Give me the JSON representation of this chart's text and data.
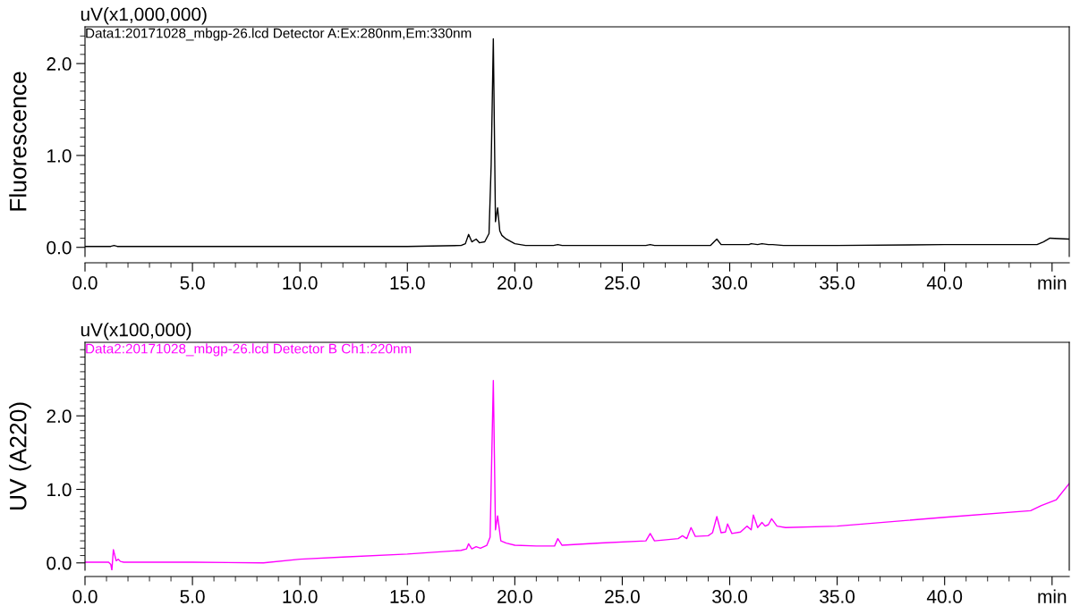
{
  "chart_data": [
    {
      "type": "line",
      "title": "Data1:20171028_mbgp-26.lcd Detector A:Ex:280nm,Em:330nm",
      "ylabel": "Fluorescence",
      "annotations": [
        "uV(x1,000,000)"
      ],
      "grid": false,
      "marker": "none",
      "line_style": "solid",
      "xlim": [
        0,
        45.8
      ],
      "ylim": [
        -0.1,
        2.4
      ],
      "xticks": [
        {
          "value": 0,
          "label": "0.0"
        },
        {
          "value": 1,
          "label": null
        },
        {
          "value": 2,
          "label": null
        },
        {
          "value": 3,
          "label": null
        },
        {
          "value": 4,
          "label": null
        },
        {
          "value": 5,
          "label": "5.0"
        },
        {
          "value": 6,
          "label": null
        },
        {
          "value": 7,
          "label": null
        },
        {
          "value": 8,
          "label": null
        },
        {
          "value": 9,
          "label": null
        },
        {
          "value": 10,
          "label": "10.0"
        },
        {
          "value": 11,
          "label": null
        },
        {
          "value": 12,
          "label": null
        },
        {
          "value": 13,
          "label": null
        },
        {
          "value": 14,
          "label": null
        },
        {
          "value": 15,
          "label": "15.0"
        },
        {
          "value": 16,
          "label": null
        },
        {
          "value": 17,
          "label": null
        },
        {
          "value": 18,
          "label": null
        },
        {
          "value": 19,
          "label": null
        },
        {
          "value": 20,
          "label": "20.0"
        },
        {
          "value": 21,
          "label": null
        },
        {
          "value": 22,
          "label": null
        },
        {
          "value": 23,
          "label": null
        },
        {
          "value": 24,
          "label": null
        },
        {
          "value": 25,
          "label": "25.0"
        },
        {
          "value": 26,
          "label": null
        },
        {
          "value": 27,
          "label": null
        },
        {
          "value": 28,
          "label": null
        },
        {
          "value": 29,
          "label": null
        },
        {
          "value": 30,
          "label": "30.0"
        },
        {
          "value": 31,
          "label": null
        },
        {
          "value": 32,
          "label": null
        },
        {
          "value": 33,
          "label": null
        },
        {
          "value": 34,
          "label": null
        },
        {
          "value": 35,
          "label": "35.0"
        },
        {
          "value": 36,
          "label": null
        },
        {
          "value": 37,
          "label": null
        },
        {
          "value": 38,
          "label": null
        },
        {
          "value": 39,
          "label": null
        },
        {
          "value": 40,
          "label": "40.0"
        },
        {
          "value": 41,
          "label": null
        },
        {
          "value": 42,
          "label": null
        },
        {
          "value": 43,
          "label": null
        },
        {
          "value": 44,
          "label": null
        },
        {
          "value": 45,
          "label": "min"
        }
      ],
      "yticks": [
        {
          "value": 0.0,
          "label": "0.0"
        },
        {
          "value": 0.1,
          "label": null
        },
        {
          "value": 0.2,
          "label": null
        },
        {
          "value": 0.3,
          "label": null
        },
        {
          "value": 0.4,
          "label": null
        },
        {
          "value": 0.5,
          "label": null
        },
        {
          "value": 0.6,
          "label": null
        },
        {
          "value": 0.7,
          "label": null
        },
        {
          "value": 0.8,
          "label": null
        },
        {
          "value": 0.9,
          "label": null
        },
        {
          "value": 1.0,
          "label": "1.0"
        },
        {
          "value": 1.1,
          "label": null
        },
        {
          "value": 1.2,
          "label": null
        },
        {
          "value": 1.3,
          "label": null
        },
        {
          "value": 1.4,
          "label": null
        },
        {
          "value": 1.5,
          "label": null
        },
        {
          "value": 1.6,
          "label": null
        },
        {
          "value": 1.7,
          "label": null
        },
        {
          "value": 1.8,
          "label": null
        },
        {
          "value": 1.9,
          "label": null
        },
        {
          "value": 2.0,
          "label": "2.0"
        },
        {
          "value": 2.1,
          "label": null
        },
        {
          "value": 2.2,
          "label": null
        },
        {
          "value": 2.3,
          "label": null
        }
      ],
      "series": [
        {
          "color": "#000000",
          "x": [
            0,
            1.2,
            1.35,
            1.5,
            5,
            10,
            15,
            17.5,
            17.7,
            17.85,
            18.0,
            18.2,
            18.35,
            18.6,
            18.8,
            18.9,
            19.0,
            19.1,
            19.2,
            19.3,
            19.4,
            19.6,
            20.0,
            20.5,
            21.8,
            22.0,
            22.2,
            26.1,
            26.3,
            26.5,
            29.1,
            29.4,
            29.6,
            30.9,
            31.0,
            31.3,
            31.5,
            31.8,
            32.0,
            32.5,
            35,
            40,
            44.3,
            44.6,
            44.9,
            45.8
          ],
          "values": [
            0.01,
            0.01,
            0.02,
            0.01,
            0.01,
            0.01,
            0.01,
            0.02,
            0.04,
            0.14,
            0.06,
            0.09,
            0.05,
            0.06,
            0.15,
            0.9,
            2.27,
            0.28,
            0.43,
            0.18,
            0.13,
            0.09,
            0.04,
            0.02,
            0.02,
            0.03,
            0.02,
            0.02,
            0.03,
            0.02,
            0.02,
            0.09,
            0.03,
            0.03,
            0.04,
            0.03,
            0.04,
            0.03,
            0.03,
            0.02,
            0.02,
            0.03,
            0.03,
            0.06,
            0.1,
            0.09
          ]
        }
      ]
    },
    {
      "type": "line",
      "title": "Data2:20171028_mbgp-26.lcd Detector B Ch1:220nm",
      "ylabel": "UV (A220)",
      "annotations": [
        "uV(x100,000)"
      ],
      "grid": false,
      "marker": "none",
      "line_style": "solid",
      "xlim": [
        0,
        45.8
      ],
      "ylim": [
        -0.1,
        3.0
      ],
      "xticks": [
        {
          "value": 0,
          "label": "0.0"
        },
        {
          "value": 1,
          "label": null
        },
        {
          "value": 2,
          "label": null
        },
        {
          "value": 3,
          "label": null
        },
        {
          "value": 4,
          "label": null
        },
        {
          "value": 5,
          "label": "5.0"
        },
        {
          "value": 6,
          "label": null
        },
        {
          "value": 7,
          "label": null
        },
        {
          "value": 8,
          "label": null
        },
        {
          "value": 9,
          "label": null
        },
        {
          "value": 10,
          "label": "10.0"
        },
        {
          "value": 11,
          "label": null
        },
        {
          "value": 12,
          "label": null
        },
        {
          "value": 13,
          "label": null
        },
        {
          "value": 14,
          "label": null
        },
        {
          "value": 15,
          "label": "15.0"
        },
        {
          "value": 16,
          "label": null
        },
        {
          "value": 17,
          "label": null
        },
        {
          "value": 18,
          "label": null
        },
        {
          "value": 19,
          "label": null
        },
        {
          "value": 20,
          "label": "20.0"
        },
        {
          "value": 21,
          "label": null
        },
        {
          "value": 22,
          "label": null
        },
        {
          "value": 23,
          "label": null
        },
        {
          "value": 24,
          "label": null
        },
        {
          "value": 25,
          "label": "25.0"
        },
        {
          "value": 26,
          "label": null
        },
        {
          "value": 27,
          "label": null
        },
        {
          "value": 28,
          "label": null
        },
        {
          "value": 29,
          "label": null
        },
        {
          "value": 30,
          "label": "30.0"
        },
        {
          "value": 31,
          "label": null
        },
        {
          "value": 32,
          "label": null
        },
        {
          "value": 33,
          "label": null
        },
        {
          "value": 34,
          "label": null
        },
        {
          "value": 35,
          "label": "35.0"
        },
        {
          "value": 36,
          "label": null
        },
        {
          "value": 37,
          "label": null
        },
        {
          "value": 38,
          "label": null
        },
        {
          "value": 39,
          "label": null
        },
        {
          "value": 40,
          "label": "40.0"
        },
        {
          "value": 41,
          "label": null
        },
        {
          "value": 42,
          "label": null
        },
        {
          "value": 43,
          "label": null
        },
        {
          "value": 44,
          "label": null
        },
        {
          "value": 45,
          "label": "min"
        }
      ],
      "yticks": [
        {
          "value": 0.0,
          "label": "0.0"
        },
        {
          "value": 0.1,
          "label": null
        },
        {
          "value": 0.2,
          "label": null
        },
        {
          "value": 0.3,
          "label": null
        },
        {
          "value": 0.4,
          "label": null
        },
        {
          "value": 0.5,
          "label": null
        },
        {
          "value": 0.6,
          "label": null
        },
        {
          "value": 0.7,
          "label": null
        },
        {
          "value": 0.8,
          "label": null
        },
        {
          "value": 0.9,
          "label": null
        },
        {
          "value": 1.0,
          "label": "1.0"
        },
        {
          "value": 1.1,
          "label": null
        },
        {
          "value": 1.2,
          "label": null
        },
        {
          "value": 1.3,
          "label": null
        },
        {
          "value": 1.4,
          "label": null
        },
        {
          "value": 1.5,
          "label": null
        },
        {
          "value": 1.6,
          "label": null
        },
        {
          "value": 1.7,
          "label": null
        },
        {
          "value": 1.8,
          "label": null
        },
        {
          "value": 1.9,
          "label": null
        },
        {
          "value": 2.0,
          "label": "2.0"
        },
        {
          "value": 2.1,
          "label": null
        },
        {
          "value": 2.2,
          "label": null
        },
        {
          "value": 2.3,
          "label": null
        },
        {
          "value": 2.4,
          "label": null
        },
        {
          "value": 2.5,
          "label": null
        },
        {
          "value": 2.6,
          "label": null
        },
        {
          "value": 2.7,
          "label": null
        },
        {
          "value": 2.8,
          "label": null
        },
        {
          "value": 2.9,
          "label": null
        }
      ],
      "series": [
        {
          "color": "#ff00ff",
          "x": [
            0,
            1.1,
            1.2,
            1.25,
            1.32,
            1.45,
            1.55,
            1.65,
            1.8,
            5,
            8.3,
            10,
            12,
            15,
            17.5,
            17.75,
            17.85,
            18.0,
            18.2,
            18.4,
            18.7,
            18.85,
            19.0,
            19.1,
            19.2,
            19.35,
            19.6,
            20.0,
            21.0,
            21.85,
            22.0,
            22.2,
            24.0,
            26.1,
            26.3,
            26.5,
            27.6,
            27.8,
            28.0,
            28.2,
            28.4,
            29.0,
            29.2,
            29.4,
            29.6,
            29.8,
            29.9,
            30.1,
            30.5,
            30.8,
            31.0,
            31.1,
            31.3,
            31.5,
            31.65,
            31.8,
            31.95,
            32.2,
            32.6,
            35,
            40,
            44,
            44.5,
            45.2,
            45.8
          ],
          "values": [
            0.01,
            0.01,
            -0.02,
            -0.1,
            0.18,
            0.03,
            0.05,
            0.02,
            0.01,
            0.01,
            0.0,
            0.05,
            0.08,
            0.12,
            0.17,
            0.19,
            0.26,
            0.19,
            0.22,
            0.2,
            0.24,
            0.35,
            2.48,
            0.45,
            0.64,
            0.3,
            0.27,
            0.24,
            0.23,
            0.23,
            0.33,
            0.24,
            0.27,
            0.3,
            0.4,
            0.3,
            0.33,
            0.37,
            0.33,
            0.48,
            0.36,
            0.37,
            0.41,
            0.63,
            0.41,
            0.42,
            0.53,
            0.4,
            0.42,
            0.5,
            0.45,
            0.65,
            0.48,
            0.55,
            0.5,
            0.52,
            0.6,
            0.5,
            0.48,
            0.5,
            0.62,
            0.71,
            0.78,
            0.86,
            1.08
          ]
        }
      ]
    }
  ]
}
